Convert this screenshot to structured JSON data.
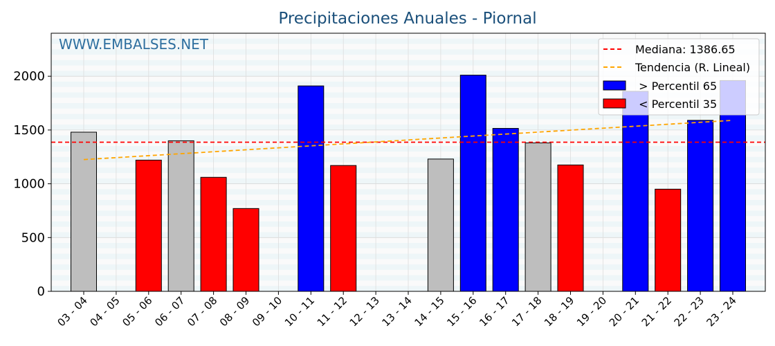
{
  "chart_data": {
    "type": "bar",
    "title": "Precipitaciones Anuales - Piornal",
    "watermark": "WWW.EMBALSES.NET",
    "xlabel": "",
    "ylabel": "",
    "ylim": [
      0,
      2400
    ],
    "y_ticks": [
      0,
      500,
      1000,
      1500,
      2000
    ],
    "grid": true,
    "legend_position": "top-right",
    "categories": [
      "03 - 04",
      "04 - 05",
      "05 - 06",
      "06 - 07",
      "07 - 08",
      "08 - 09",
      "09 - 10",
      "10 - 11",
      "11 - 12",
      "12 - 13",
      "13 - 14",
      "14 - 15",
      "15 - 16",
      "16 - 17",
      "17 - 18",
      "18 - 19",
      "19 - 20",
      "20 - 21",
      "21 - 22",
      "22 - 23",
      "23 - 24"
    ],
    "values": [
      1480,
      null,
      1220,
      1400,
      1060,
      770,
      null,
      1910,
      1170,
      null,
      null,
      1230,
      2010,
      1515,
      1380,
      1175,
      null,
      1860,
      950,
      1590,
      1960
    ],
    "bar_class": [
      "normal",
      null,
      "low",
      "normal",
      "low",
      "low",
      null,
      "high",
      "low",
      null,
      null,
      "normal",
      "high",
      "high",
      "normal",
      "low",
      null,
      "high",
      "low",
      "high",
      "high"
    ],
    "median": 1386.65,
    "trend": {
      "start": 1225,
      "end": 1590
    },
    "legend": {
      "median": "Mediana: 1386.65",
      "trend": "Tendencia (R. Lineal)",
      "high": " > Percentil 65",
      "low": " < Percentil 35"
    },
    "colors": {
      "high": "#0000ff",
      "low": "#ff0000",
      "normal": "#bebebe",
      "median": "#ff0000",
      "trend": "#ffa500",
      "title": "#1a4f7a",
      "watermark": "#2f6f9f"
    }
  }
}
